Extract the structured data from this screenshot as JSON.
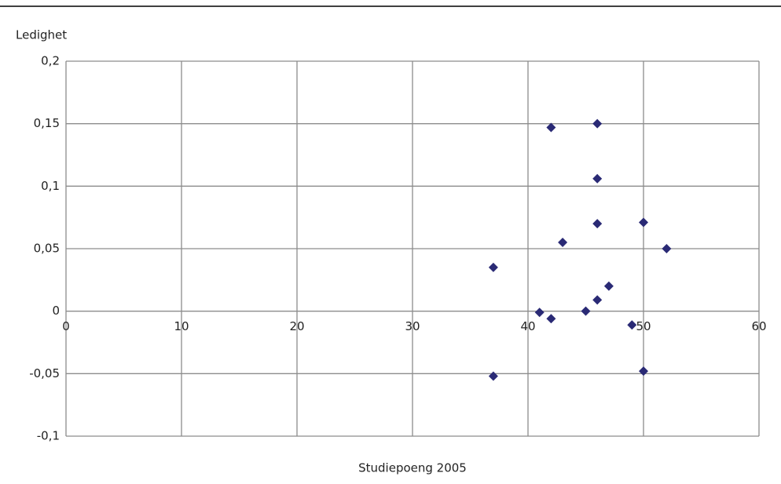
{
  "chart_data": {
    "type": "scatter",
    "y_label": "Ledighet",
    "x_label": "Studiepoeng 2005",
    "color": "#2a2a75",
    "grid": true,
    "xlim": [
      0,
      60
    ],
    "xticks": [
      0,
      10,
      20,
      30,
      40,
      50,
      60
    ],
    "ylim": [
      -0.1,
      0.2
    ],
    "yticks": [
      {
        "value": 0.2,
        "label": "0,2"
      },
      {
        "value": 0.15,
        "label": "0,15"
      },
      {
        "value": 0.1,
        "label": "0,1"
      },
      {
        "value": 0.05,
        "label": "0,05"
      },
      0,
      {
        "value": -0.05,
        "label": "-0,05"
      },
      {
        "value": -0.1,
        "label": "-0,1"
      }
    ],
    "x": [
      37,
      37,
      41,
      42,
      42,
      43,
      45,
      46,
      46,
      46,
      46,
      47,
      49,
      50,
      50,
      52
    ],
    "values": [
      0.035,
      -0.052,
      -0.001,
      -0.006,
      0.147,
      0.055,
      0,
      0.15,
      0.106,
      0.07,
      0.009,
      0.02,
      -0.011,
      0.071,
      -0.048,
      0.05
    ]
  }
}
